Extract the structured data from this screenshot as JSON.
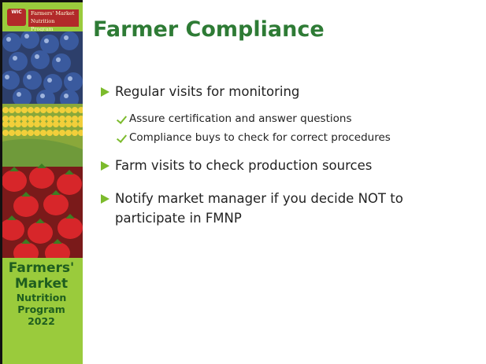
{
  "logo": {
    "badge": "WIC",
    "lines": [
      "Farmers' Market",
      "Nutrition Program"
    ]
  },
  "sidebar": {
    "lines": [
      "Farmers'",
      "Market",
      "Nutrition",
      "Program",
      "2022"
    ]
  },
  "title": "Farmer Compliance",
  "bullets": [
    {
      "text": "Regular visits for monitoring",
      "subitems": [
        "Assure certification and answer questions",
        "Compliance buys to check for correct procedures"
      ]
    },
    {
      "text": "Farm visits to check production sources"
    },
    {
      "text": "Notify market manager if you decide NOT to participate in FMNP"
    }
  ]
}
